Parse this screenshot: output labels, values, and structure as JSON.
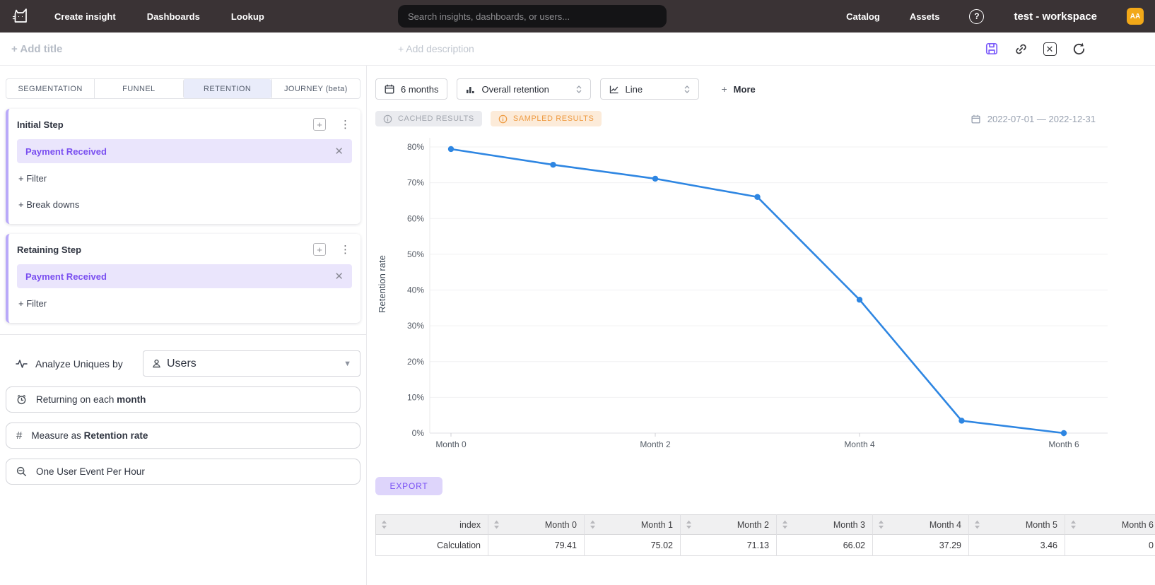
{
  "topnav": {
    "items": [
      {
        "label": "Create insight"
      },
      {
        "label": "Dashboards"
      },
      {
        "label": "Lookup"
      }
    ],
    "search_placeholder": "Search insights, dashboards, or users...",
    "right_items": [
      {
        "label": "Catalog"
      },
      {
        "label": "Assets"
      }
    ],
    "help_glyph": "?",
    "workspace": "test - workspace",
    "avatar_initials": "AA"
  },
  "header": {
    "add_title": "+ Add title",
    "add_description": "+ Add description"
  },
  "sidebar": {
    "tabs": [
      {
        "label": "SEGMENTATION"
      },
      {
        "label": "FUNNEL"
      },
      {
        "label": "RETENTION"
      },
      {
        "label": "JOURNEY (beta)"
      }
    ],
    "initial_step": {
      "title": "Initial Step",
      "event": "Payment Received",
      "filter_action": "+ Filter",
      "breakdown_action": "+ Break downs"
    },
    "retaining_step": {
      "title": "Retaining Step",
      "event": "Payment Received",
      "filter_action": "+ Filter"
    },
    "analyze": {
      "label": "Analyze Uniques by",
      "value": "Users"
    },
    "returning": {
      "prefix": "Returning on each ",
      "bold": "month"
    },
    "measure": {
      "prefix": "Measure as ",
      "bold": "Retention rate"
    },
    "dedupe": "One User Event Per Hour"
  },
  "toolbar": {
    "date_window": "6 months",
    "metric": "Overall retention",
    "chart_type": "Line",
    "more_plus": "+",
    "more_label": "More",
    "badges": [
      {
        "label": "CACHED RESULTS"
      },
      {
        "label": "SAMPLED RESULTS"
      }
    ],
    "date_range": "2022-07-01 — 2022-12-31"
  },
  "chart_data": {
    "type": "line",
    "categories": [
      "Month 0",
      "Month 1",
      "Month 2",
      "Month 3",
      "Month 4",
      "Month 5",
      "Month 6"
    ],
    "values": [
      79.41,
      75.02,
      71.13,
      66.02,
      37.29,
      3.46,
      0
    ],
    "series_name": "Calculation",
    "ylabel": "Retention rate",
    "yticks": [
      0,
      10,
      20,
      30,
      40,
      50,
      60,
      70,
      80
    ],
    "ytick_suffix": "%",
    "xtick_indices": [
      0,
      2,
      4,
      6
    ],
    "ylim": [
      0,
      84
    ],
    "grid": "horizontal",
    "line_color": "#2e86e2"
  },
  "export_label": "EXPORT",
  "table": {
    "columns": [
      "index",
      "Month 0",
      "Month 1",
      "Month 2",
      "Month 3",
      "Month 4",
      "Month 5",
      "Month 6"
    ],
    "rows": [
      [
        "Calculation",
        "79.41",
        "75.02",
        "71.13",
        "66.02",
        "37.29",
        "3.46",
        "0"
      ]
    ]
  }
}
